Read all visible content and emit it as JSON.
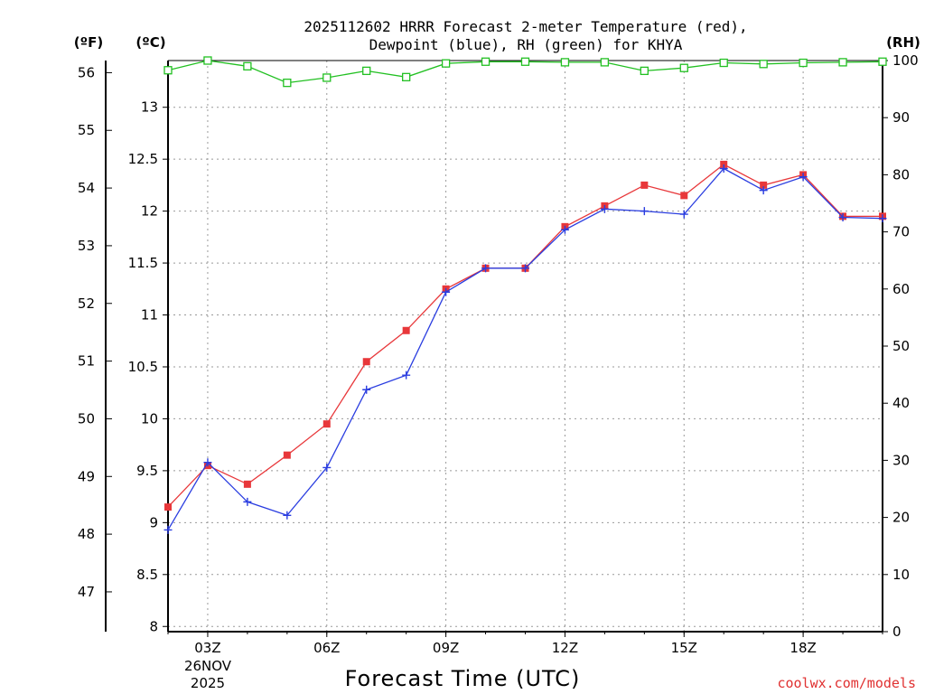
{
  "title_line1": "2025112602 HRRR Forecast 2-meter Temperature (red),",
  "title_line2": "Dewpoint (blue), RH (green) for KHYA",
  "units": {
    "fahrenheit": "(ºF)",
    "celsius": "(ºC)",
    "rh": "(RH)"
  },
  "xlabel": "Forecast Time (UTC)",
  "credit": "coolwx.com/models",
  "date_label": {
    "day": "26NOV",
    "year": "2025"
  },
  "colors": {
    "temperature": "#e8373a",
    "dewpoint": "#2a3de0",
    "rh": "#22c022",
    "axis": "#000000"
  },
  "chart_data": {
    "type": "line",
    "title": "2025112602 HRRR Forecast 2-meter Temperature (red), Dewpoint (blue), RH (green) for KHYA",
    "xlabel": "Forecast Time (UTC)",
    "x_hours": [
      2,
      3,
      4,
      5,
      6,
      7,
      8,
      9,
      10,
      11,
      12,
      13,
      14,
      15,
      16,
      17,
      18,
      19,
      20
    ],
    "xlim": [
      2,
      20
    ],
    "x_ticks": [
      {
        "hour": 3,
        "label": "03Z"
      },
      {
        "hour": 6,
        "label": "06Z"
      },
      {
        "hour": 9,
        "label": "09Z"
      },
      {
        "hour": 12,
        "label": "12Z"
      },
      {
        "hour": 15,
        "label": "15Z"
      },
      {
        "hour": 18,
        "label": "18Z"
      }
    ],
    "ylim_celsius": [
      7.95,
      13.45
    ],
    "celsius_ticks": [
      "8",
      "8.5",
      "9",
      "9.5",
      "10",
      "10.5",
      "11",
      "11.5",
      "12",
      "12.5",
      "13"
    ],
    "fahrenheit_ticks": [
      "47",
      "48",
      "49",
      "50",
      "51",
      "52",
      "53",
      "54",
      "55",
      "56"
    ],
    "ylim_rh": [
      0,
      100
    ],
    "rh_ticks": [
      "0",
      "10",
      "20",
      "30",
      "40",
      "50",
      "60",
      "70",
      "80",
      "90",
      "100"
    ],
    "series": [
      {
        "name": "Temperature",
        "axis": "celsius",
        "marker": "square-filled",
        "values": [
          9.15,
          9.55,
          9.37,
          9.65,
          9.95,
          10.55,
          10.85,
          11.25,
          11.45,
          11.45,
          11.85,
          12.05,
          12.25,
          12.15,
          12.45,
          12.25,
          12.35,
          11.95,
          11.95
        ]
      },
      {
        "name": "Dewpoint",
        "axis": "celsius",
        "marker": "plus",
        "values": [
          8.93,
          9.58,
          9.2,
          9.07,
          9.53,
          10.28,
          10.42,
          11.22,
          11.45,
          11.45,
          11.82,
          12.02,
          12.0,
          11.97,
          12.41,
          12.2,
          12.33,
          11.94,
          11.93
        ]
      },
      {
        "name": "RH",
        "axis": "rh",
        "marker": "square-open",
        "values": [
          98.3,
          100,
          99.0,
          96.1,
          97.0,
          98.2,
          97.1,
          99.5,
          99.8,
          99.8,
          99.7,
          99.7,
          98.2,
          98.7,
          99.6,
          99.4,
          99.6,
          99.7,
          99.8
        ]
      }
    ]
  }
}
